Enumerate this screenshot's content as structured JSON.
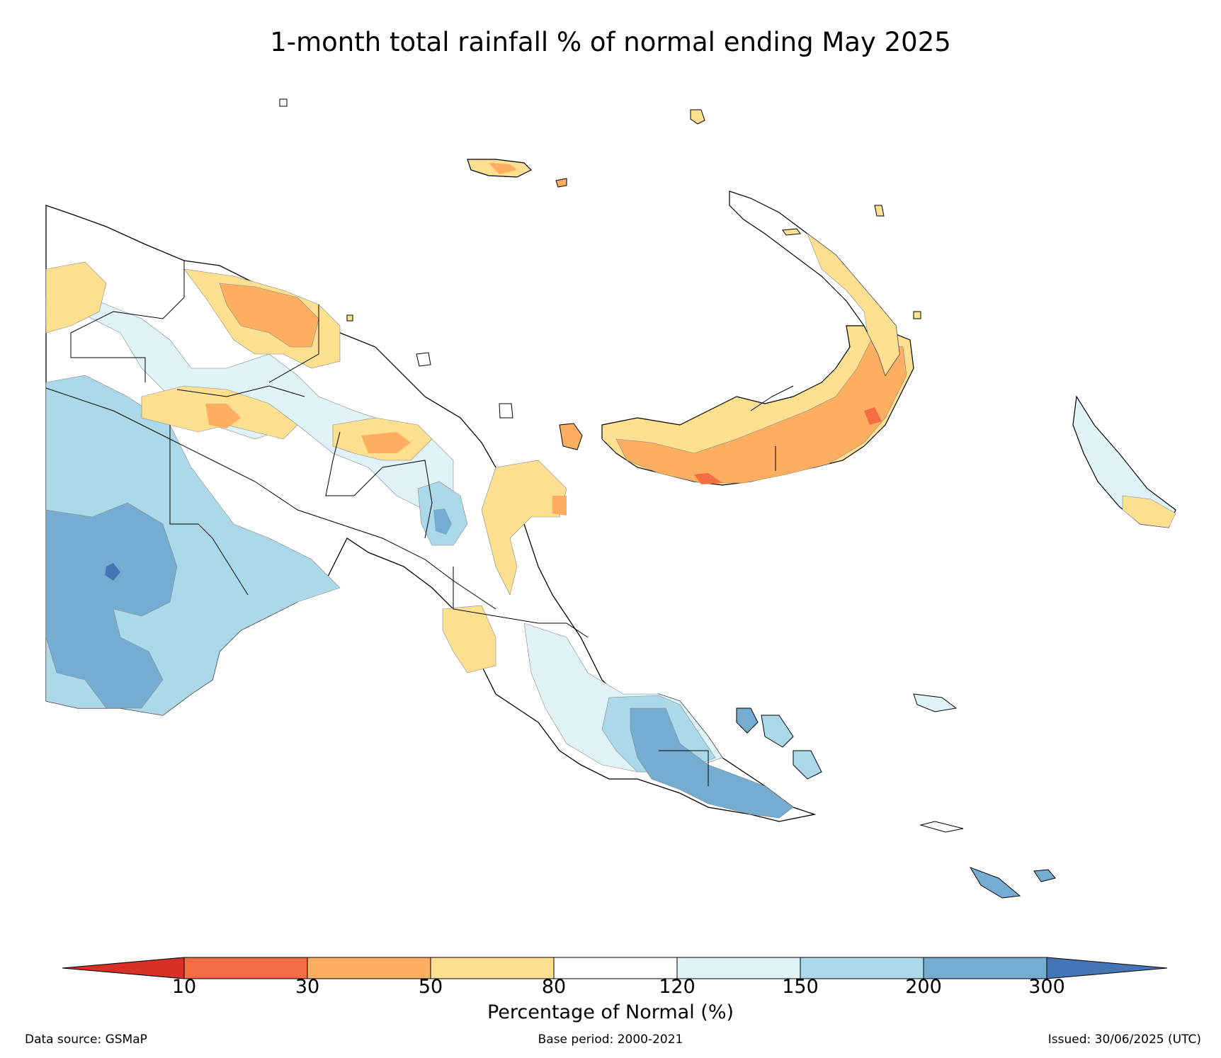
{
  "title": "1-month total rainfall % of normal ending May 2025",
  "legend": {
    "ticks": [
      "10",
      "30",
      "50",
      "80",
      "120",
      "150",
      "200",
      "300"
    ],
    "axis_label": "Percentage of Normal (%)",
    "colors": [
      "#d73027",
      "#f46d43",
      "#fdae61",
      "#fee090",
      "#ffffff",
      "#e0f3f8",
      "#abd9e9",
      "#74add1",
      "#4575b4"
    ]
  },
  "footer": {
    "source": "Data source: GSMaP",
    "base_period": "Base period: 2000-2021",
    "issued": "Issued: 30/06/2025 (UTC)"
  },
  "map": {
    "region": "Papua New Guinea",
    "variable": "rainfall percentage of normal"
  }
}
